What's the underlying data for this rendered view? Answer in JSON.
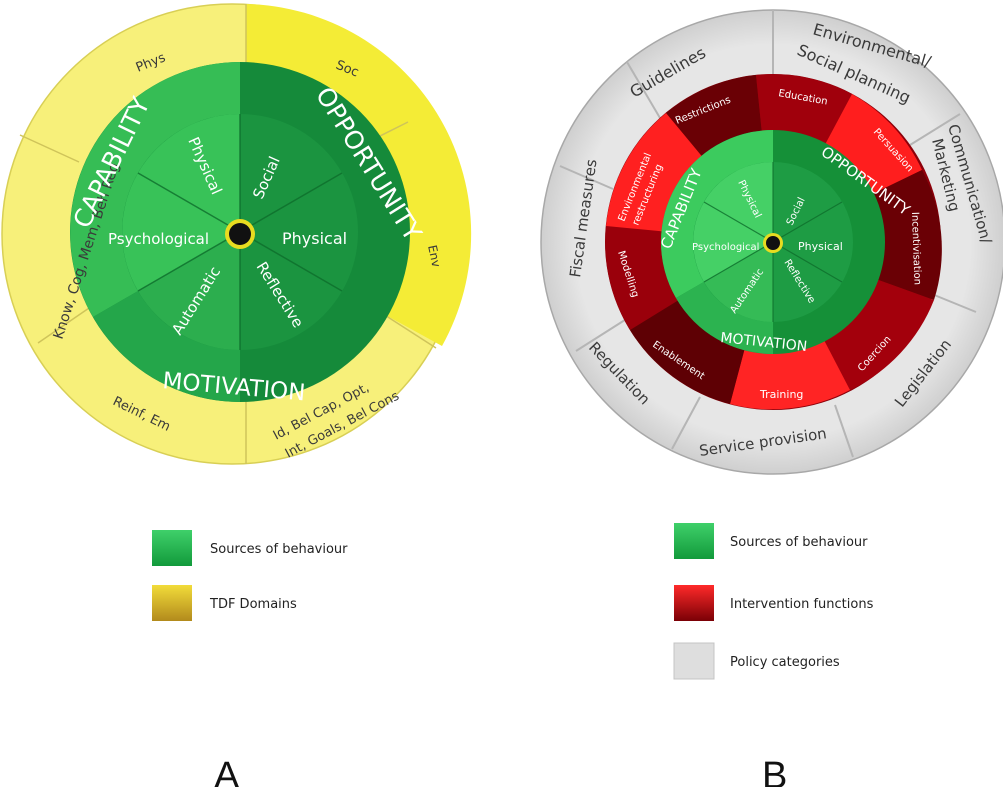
{
  "colors": {
    "green_dark": "#158a3a",
    "green_light": "#3cc45a",
    "yellow": "#f7f07a",
    "yellow_bright": "#f5ee3a",
    "red_bright": "#ff1a1a",
    "red_dark": "#7a0006",
    "grey": "#dcdcdc"
  },
  "panel_a": {
    "letter": "A",
    "domains": {
      "phys": "Phys",
      "soc": "Soc",
      "env": "Env",
      "psych": "Know, Cog, Mem, Beh Reg",
      "reflective_line1": "Id, Bel Cap, Opt,",
      "reflective_line2": "Int, Goals, Bel Cons",
      "automatic": "Reinf,  Em"
    },
    "com": {
      "capability": "CAPABILITY",
      "opportunity": "OPPORTUNITY",
      "motivation": "MOTIVATION",
      "physical_cap": "Physical",
      "social": "Social",
      "psychological": "Psychological",
      "physical_opp": "Physical",
      "automatic": "Automatic",
      "reflective": "Reflective"
    },
    "legend": [
      {
        "label": "Sources of behaviour",
        "swatch": "green"
      },
      {
        "label": "TDF Domains",
        "swatch": "gold"
      }
    ]
  },
  "panel_b": {
    "letter": "B",
    "policies": {
      "fiscal": "Fiscal measures",
      "guidelines": "Guidelines",
      "env_line1": "Environmental/",
      "env_line2": "Social planning",
      "comm_line1": "Communication/",
      "comm_line2": "Marketing",
      "legislation": "Legislation",
      "service": "Service provision",
      "regulation": "Regulation"
    },
    "interventions": {
      "restrictions": "Restrictions",
      "education": "Education",
      "persuasion": "Persuasion",
      "incentivisation": "Incentivisation",
      "coercion": "Coercion",
      "training": "Training",
      "enablement": "Enablement",
      "modelling": "Modelling",
      "env_restr_line1": "Environmental",
      "env_restr_line2": "restructuring"
    },
    "com": {
      "capability": "CAPABILITY",
      "opportunity": "OPPORTUNITY",
      "motivation": "MOTIVATION",
      "physical_cap": "Physical",
      "social": "Social",
      "psychological": "Psychological",
      "physical_opp": "Physical",
      "automatic": "Automatic",
      "reflective": "Reflective"
    },
    "legend": [
      {
        "label": "Sources of behaviour",
        "swatch": "green"
      },
      {
        "label": "Intervention functions",
        "swatch": "red"
      },
      {
        "label": "Policy categories",
        "swatch": "grey"
      }
    ]
  }
}
